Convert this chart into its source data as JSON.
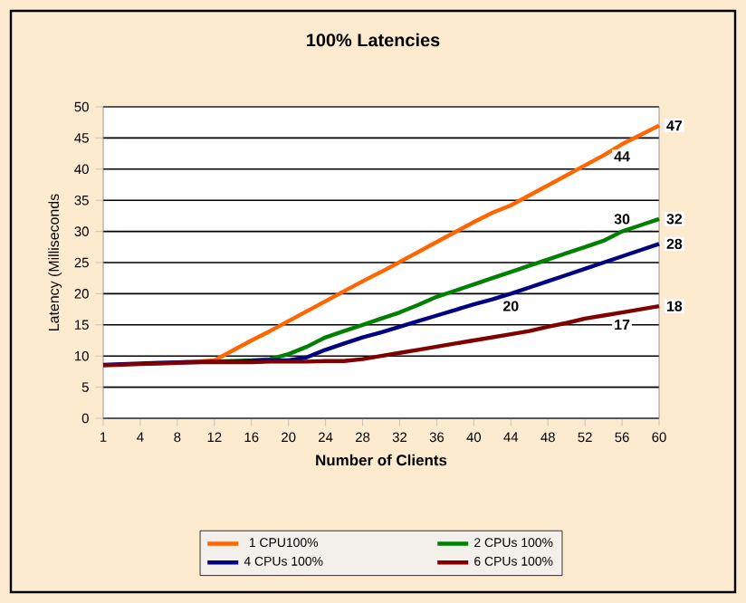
{
  "chart_data": {
    "type": "line",
    "title": "100% Latencies",
    "xlabel": "Number of Clients",
    "ylabel": "Latency (Milliseconds",
    "categories": [
      "1",
      null,
      "4",
      null,
      "8",
      null,
      "12",
      null,
      "16",
      null,
      "20",
      null,
      "24",
      null,
      "28",
      null,
      "32",
      null,
      "36",
      null,
      "40",
      null,
      "44",
      null,
      "48",
      null,
      "52",
      null,
      "56",
      null,
      "60"
    ],
    "ylim": [
      0,
      50
    ],
    "yticks": [
      0,
      5,
      10,
      15,
      20,
      25,
      30,
      35,
      40,
      45,
      50
    ],
    "grid": "y",
    "legend": "bottom",
    "line_style": "solid",
    "series": [
      {
        "name": "1 CPU100%",
        "color": "#ff6600",
        "values": [
          null,
          null,
          null,
          null,
          9,
          9.1,
          9.3,
          10.9,
          12.5,
          14,
          15.6,
          17.2,
          18.8,
          20.4,
          22,
          23.5,
          25.1,
          26.7,
          28.3,
          29.9,
          31.5,
          33,
          34.2,
          35.8,
          37.4,
          39,
          40.6,
          42.2,
          44,
          45.5,
          47
        ],
        "value_labels": [
          null,
          null,
          null,
          null,
          null,
          null,
          null,
          null,
          null,
          null,
          null,
          null,
          null,
          null,
          null,
          null,
          null,
          null,
          null,
          null,
          null,
          null,
          null,
          null,
          null,
          null,
          null,
          null,
          "44",
          null,
          "47"
        ]
      },
      {
        "name": "2 CPUs 100%",
        "color": "#008000",
        "values": [
          null,
          null,
          null,
          null,
          9,
          9.1,
          9.1,
          9.2,
          9.3,
          9.5,
          10.3,
          11.5,
          13,
          14,
          15,
          16,
          17,
          18.2,
          19.5,
          20.5,
          21.5,
          22.5,
          23.5,
          24.5,
          25.5,
          26.5,
          27.5,
          28.5,
          30,
          31,
          32
        ],
        "value_labels": [
          null,
          null,
          null,
          null,
          null,
          null,
          null,
          null,
          null,
          null,
          null,
          null,
          null,
          null,
          null,
          null,
          null,
          null,
          null,
          null,
          null,
          null,
          null,
          null,
          null,
          null,
          null,
          null,
          "30",
          null,
          "32"
        ]
      },
      {
        "name": "4 CPUs 100%",
        "color": "#000080",
        "values": [
          8.6,
          8.7,
          8.8,
          8.9,
          9,
          9,
          9.1,
          9.1,
          9.2,
          9.3,
          9.3,
          9.8,
          11,
          12,
          13,
          13.8,
          14.7,
          15.6,
          16.5,
          17.4,
          18.3,
          19.1,
          20,
          21,
          22,
          23,
          24,
          25,
          26,
          27,
          28
        ],
        "value_labels": [
          null,
          null,
          null,
          null,
          null,
          null,
          null,
          null,
          null,
          null,
          null,
          null,
          null,
          null,
          null,
          null,
          null,
          null,
          null,
          null,
          null,
          null,
          "20",
          null,
          null,
          null,
          null,
          null,
          null,
          null,
          "28"
        ]
      },
      {
        "name": "6 CPUs 100%",
        "color": "#800000",
        "values": [
          8.5,
          8.6,
          8.7,
          8.8,
          8.9,
          9,
          9,
          9,
          9,
          9.1,
          9.1,
          9.1,
          9.2,
          9.2,
          9.5,
          10,
          10.5,
          11,
          11.5,
          12,
          12.5,
          13,
          13.5,
          14,
          14.7,
          15.3,
          16,
          16.5,
          17,
          17.5,
          18
        ],
        "value_labels": [
          null,
          null,
          null,
          null,
          null,
          null,
          null,
          null,
          null,
          null,
          null,
          null,
          null,
          null,
          null,
          null,
          null,
          null,
          null,
          null,
          null,
          null,
          null,
          null,
          null,
          null,
          null,
          null,
          "17",
          null,
          "18"
        ]
      }
    ]
  }
}
